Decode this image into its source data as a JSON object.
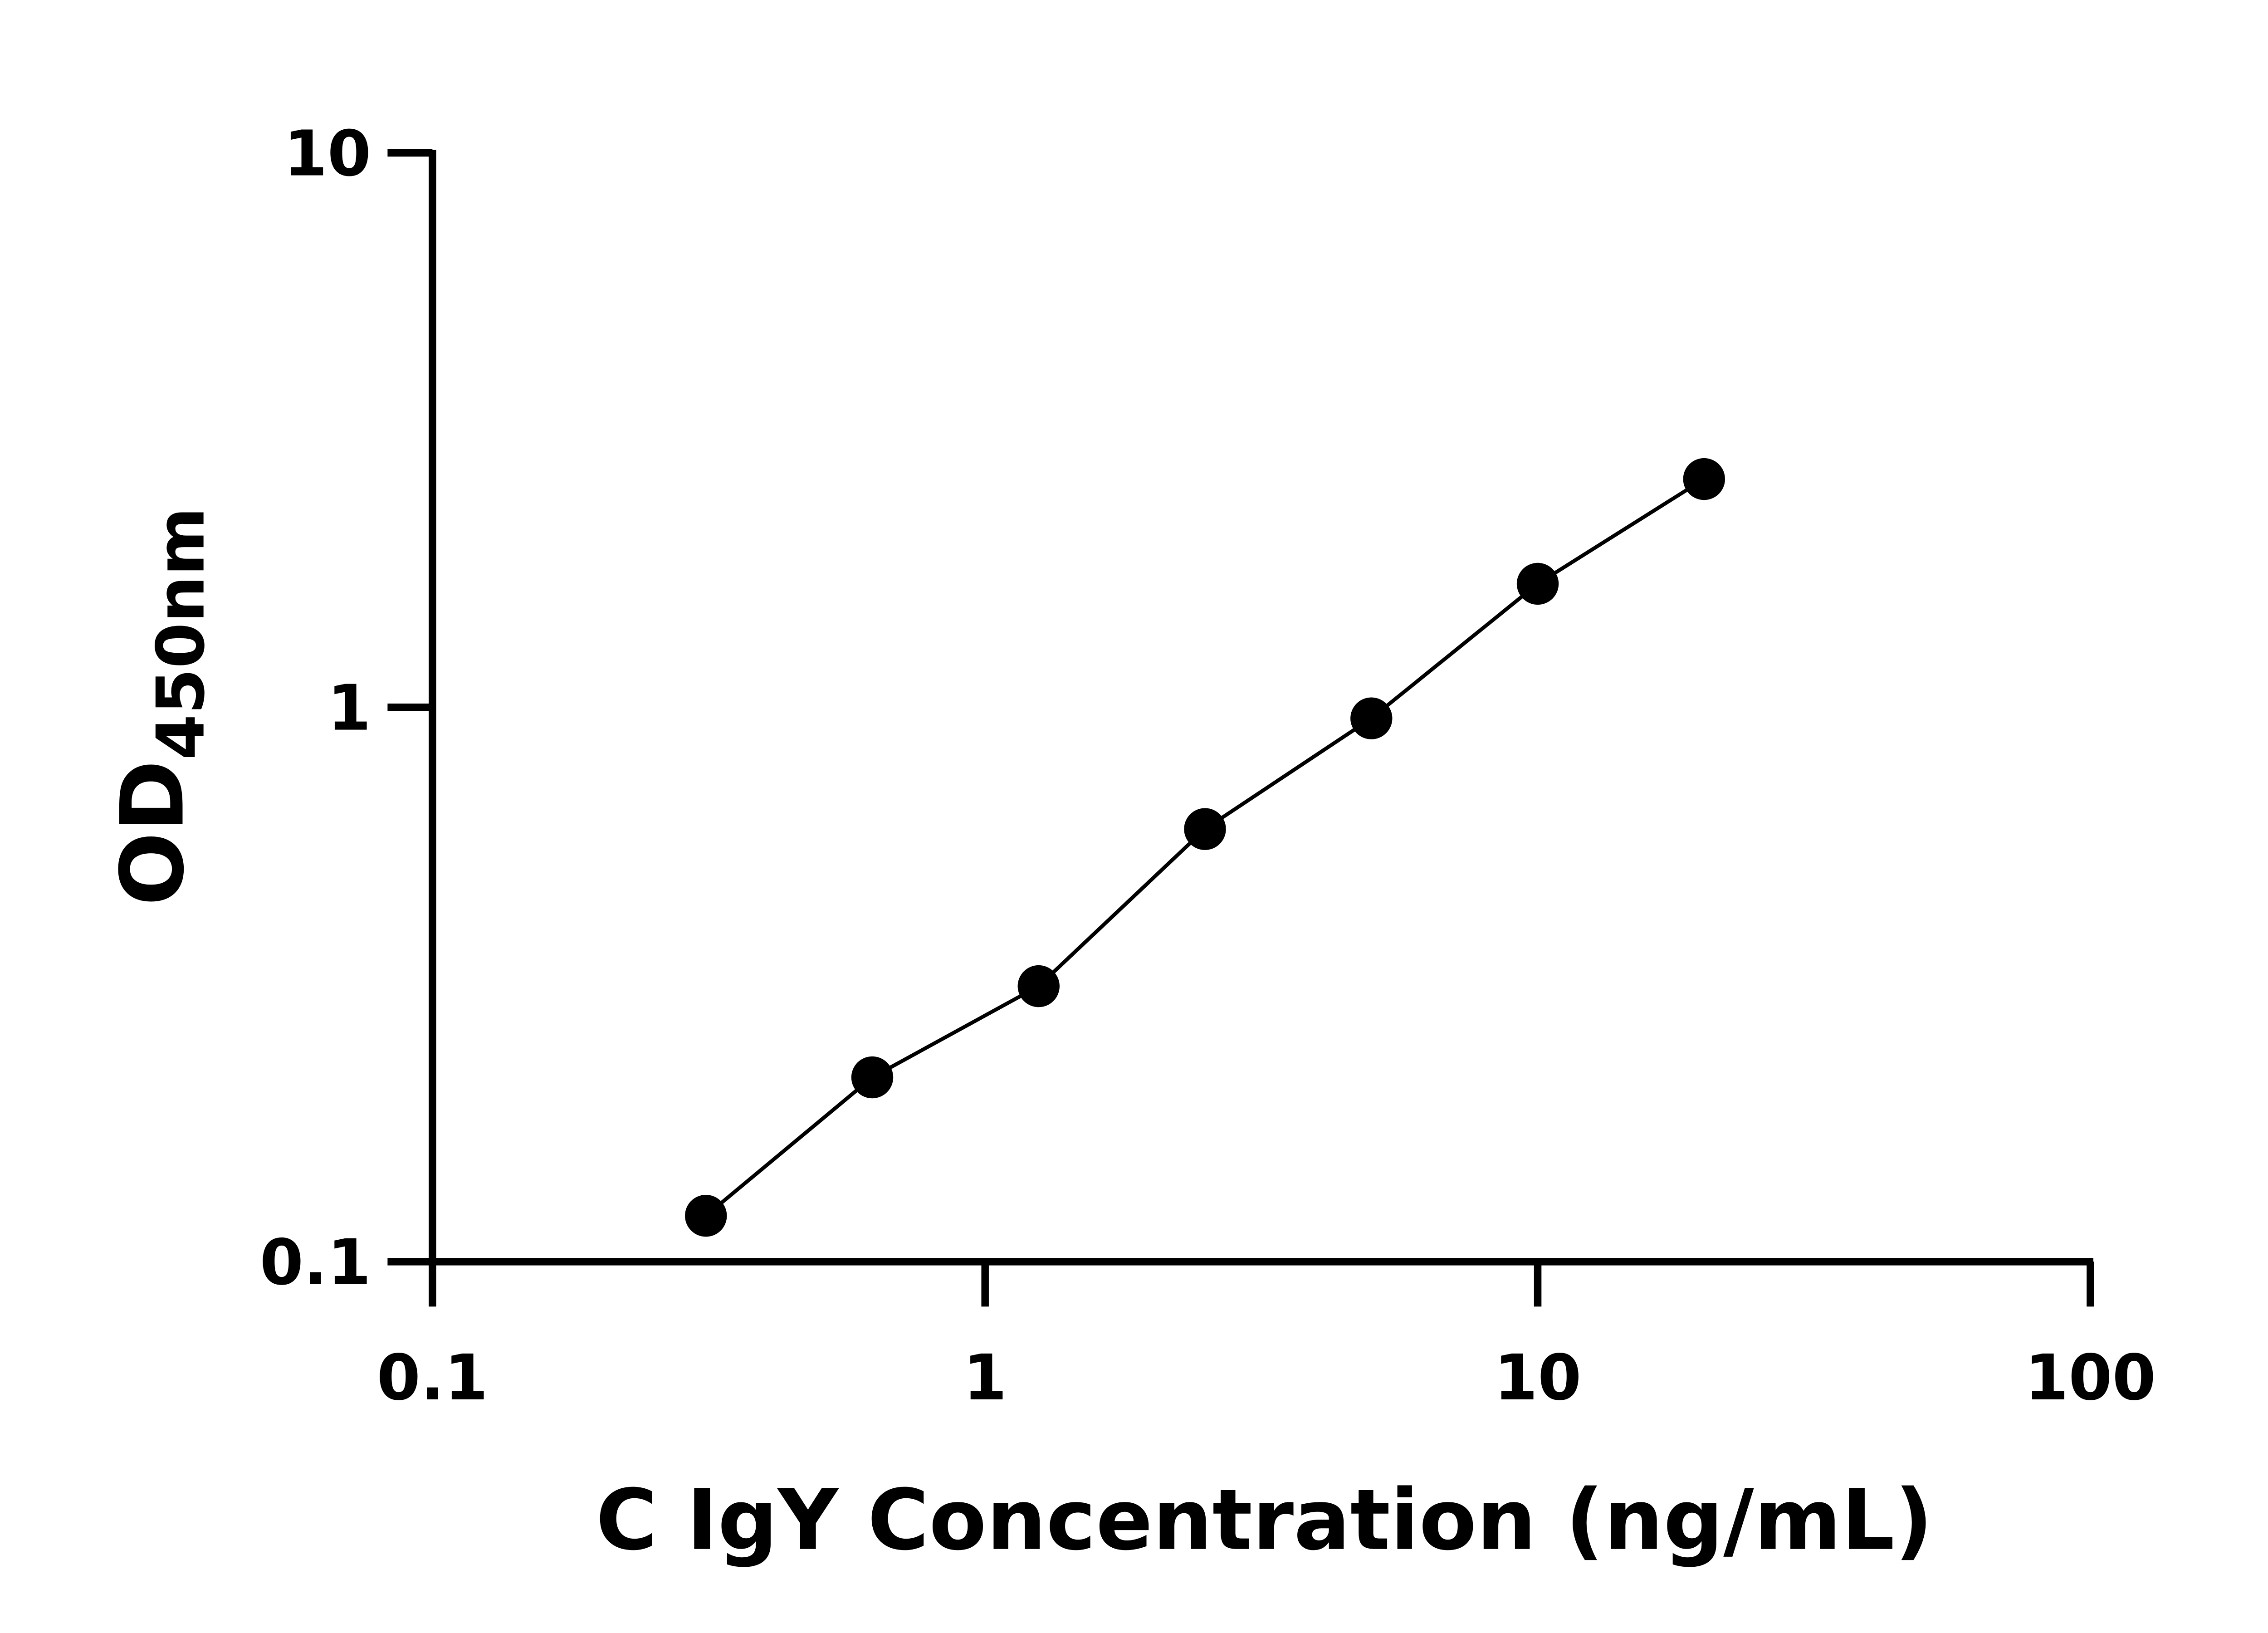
{
  "chart_data": {
    "type": "scatter",
    "x_label": "C IgY Concentration (ng/mL)",
    "y_label": "OD",
    "y_label_subscript": "450nm",
    "x": [
      0.3125,
      0.625,
      1.25,
      2.5,
      5,
      10,
      20
    ],
    "series": [
      {
        "color": "#000000",
        "values": [
          0.121,
          0.215,
          0.314,
          0.603,
          0.955,
          1.67,
          2.58
        ]
      }
    ],
    "xlim": [
      0.1,
      100
    ],
    "xticks": [
      0.1,
      1,
      10,
      100
    ],
    "ylim": [
      0.1,
      10
    ],
    "yticks": [
      0.1,
      1,
      10
    ],
    "xscale": "log",
    "yscale": "log",
    "fit_line": true,
    "grid": false
  }
}
